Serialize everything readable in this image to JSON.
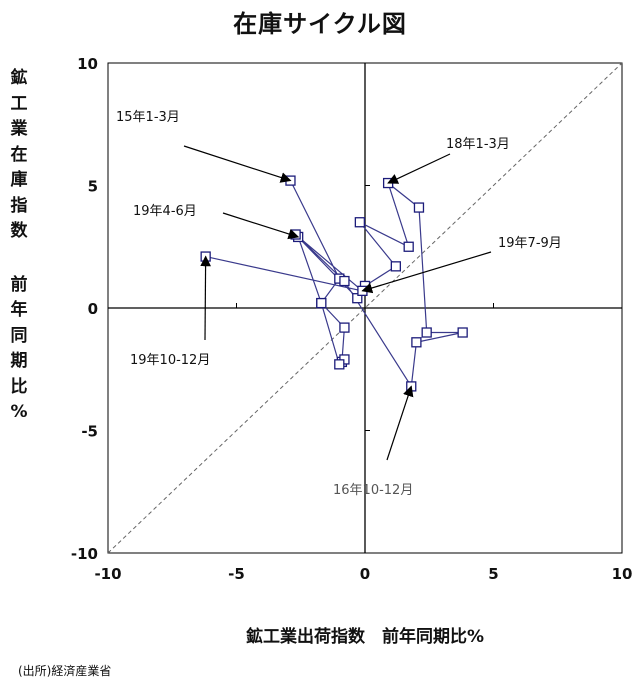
{
  "chart_data": {
    "type": "scatter",
    "title": "在庫サイクル図",
    "xlabel": "鉱工業出荷指数　前年同期比%",
    "ylabel_top": "鉱工業在庫指数",
    "ylabel_bottom": "前年同期比%",
    "xlim": [
      -10,
      10
    ],
    "ylim": [
      -10,
      10
    ],
    "x_ticks": [
      "-10",
      "-5",
      "0",
      "5",
      "10"
    ],
    "y_ticks": [
      "10",
      "5",
      "0",
      "-5",
      "-10"
    ],
    "grid": false,
    "reference_line": "45-degree dashed line",
    "series": [
      {
        "connected": true,
        "points": [
          [
            -2.9,
            5.2
          ],
          [
            -1.0,
            1.2
          ],
          [
            -1.7,
            0.2
          ],
          [
            -0.8,
            -0.8
          ],
          [
            -0.9,
            -2.2
          ],
          [
            -0.8,
            -2.1
          ],
          [
            -1.0,
            -2.3
          ],
          [
            -1.7,
            0.2
          ],
          [
            -2.6,
            2.9
          ],
          [
            -0.8,
            1.1
          ],
          [
            1.8,
            -3.2
          ],
          [
            2.0,
            -1.4
          ],
          [
            3.8,
            -1.0
          ],
          [
            2.4,
            -1.0
          ],
          [
            2.1,
            4.1
          ],
          [
            0.9,
            5.1
          ],
          [
            1.7,
            2.5
          ],
          [
            -0.2,
            3.5
          ],
          [
            1.2,
            1.7
          ],
          [
            0.0,
            0.9
          ],
          [
            -0.3,
            0.4
          ],
          [
            -2.7,
            3.0
          ],
          [
            -0.1,
            0.7
          ],
          [
            -6.2,
            2.1
          ]
        ]
      }
    ],
    "annotations": [
      {
        "text": "15年1-3月",
        "target": [
          -2.9,
          5.2
        ]
      },
      {
        "text": "18年1-3月",
        "target": [
          0.9,
          5.1
        ]
      },
      {
        "text": "19年4-6月",
        "target": [
          -2.6,
          2.9
        ]
      },
      {
        "text": "19年7-9月",
        "target": [
          -0.1,
          0.7
        ]
      },
      {
        "text": "19年10-12月",
        "target": [
          -6.2,
          2.1
        ]
      },
      {
        "text": "16年10-12月",
        "target": [
          1.8,
          -3.2
        ]
      }
    ]
  },
  "source": "(出所)経済産業省",
  "colors": {
    "series_line": "#3a3a8c",
    "marker_edge": "#1c1c7a",
    "axis": "#000000",
    "reference": "#666666"
  }
}
